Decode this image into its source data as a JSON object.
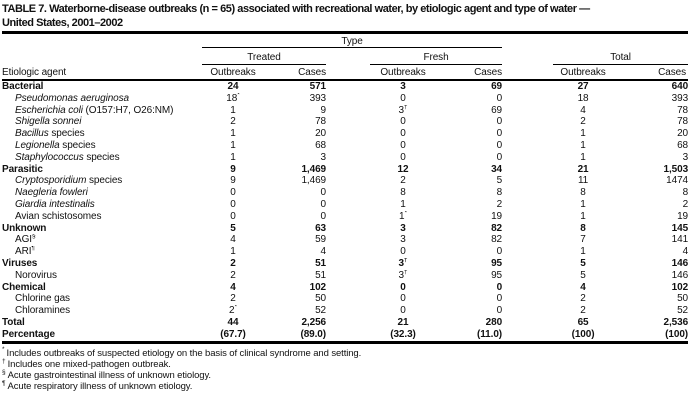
{
  "title": {
    "line1": "TABLE 7. Waterborne-disease outbreaks (n = 65) associated with recreational water, by etiologic agent and type of water —",
    "line2": "United States, 2001–2002"
  },
  "table": {
    "group_header": {
      "type": "Type",
      "treated": "Treated",
      "fresh": "Fresh",
      "total": "Total"
    },
    "col_headers": {
      "agent": "Etiologic agent",
      "outbreaks": "Outbreaks",
      "cases": "Cases"
    },
    "rows": [
      {
        "kind": "category",
        "label": "Bacterial",
        "cells": [
          "24",
          "571",
          "3",
          "69",
          "27",
          "640"
        ]
      },
      {
        "kind": "species",
        "label_i": "Pseudomonas aeruginosa",
        "cells": [
          "18^*",
          "393",
          "0",
          "0",
          "18",
          "393"
        ]
      },
      {
        "kind": "species",
        "label_i": "Escherichia coli",
        "label_r": " (O157:H7, O26:NM)",
        "cells": [
          "1",
          "9",
          "3^†",
          "69",
          "4",
          "78"
        ]
      },
      {
        "kind": "species",
        "label_i": "Shigella sonnei",
        "cells": [
          "2",
          "78",
          "0",
          "0",
          "2",
          "78"
        ]
      },
      {
        "kind": "species",
        "label_i": "Bacillus",
        "label_r": " species",
        "cells": [
          "1",
          "20",
          "0",
          "0",
          "1",
          "20"
        ]
      },
      {
        "kind": "species",
        "label_i": "Legionella",
        "label_r": " species",
        "cells": [
          "1",
          "68",
          "0",
          "0",
          "1",
          "68"
        ]
      },
      {
        "kind": "species",
        "label_i": "Staphylococcus",
        "label_r": " species",
        "cells": [
          "1",
          "3",
          "0",
          "0",
          "1",
          "3"
        ]
      },
      {
        "kind": "category",
        "label": "Parasitic",
        "cells": [
          "9",
          "1,469",
          "12",
          "34",
          "21",
          "1,503"
        ]
      },
      {
        "kind": "species",
        "label_i": "Cryptosporidium",
        "label_r": " species",
        "cells": [
          "9",
          "1,469",
          "2",
          "5",
          "11",
          "1474"
        ]
      },
      {
        "kind": "species",
        "label_i": "Naegleria fowleri",
        "cells": [
          "0",
          "0",
          "8",
          "8",
          "8",
          "8"
        ]
      },
      {
        "kind": "species",
        "label_i": "Giardia intestinalis",
        "cells": [
          "0",
          "0",
          "1",
          "2",
          "1",
          "2"
        ]
      },
      {
        "kind": "sub",
        "label_r": "Avian schistosomes",
        "cells": [
          "0",
          "0",
          "1^*",
          "19",
          "1",
          "19"
        ]
      },
      {
        "kind": "category",
        "label": "Unknown",
        "cells": [
          "5",
          "63",
          "3",
          "82",
          "8",
          "145"
        ]
      },
      {
        "kind": "sub",
        "label_r": "AGI^§",
        "cells": [
          "4",
          "59",
          "3",
          "82",
          "7",
          "141"
        ]
      },
      {
        "kind": "sub",
        "label_r": "ARI^¶",
        "cells": [
          "1",
          "4",
          "0",
          "0",
          "1",
          "4"
        ]
      },
      {
        "kind": "category",
        "label": "Viruses",
        "cells": [
          "2",
          "51",
          "3^†",
          "95",
          "5",
          "146"
        ]
      },
      {
        "kind": "sub",
        "label_r": "Norovirus",
        "cells": [
          "2",
          "51",
          "3^†",
          "95",
          "5",
          "146"
        ]
      },
      {
        "kind": "category",
        "label": "Chemical",
        "cells": [
          "4",
          "102",
          "0",
          "0",
          "4",
          "102"
        ]
      },
      {
        "kind": "sub",
        "label_r": "Chlorine gas",
        "cells": [
          "2",
          "50",
          "0",
          "0",
          "2",
          "50"
        ]
      },
      {
        "kind": "sub",
        "label_r": "Chloramines",
        "cells": [
          "2^*",
          "52",
          "0",
          "0",
          "2",
          "52"
        ]
      },
      {
        "kind": "total",
        "label": "Total",
        "cells": [
          "44",
          "2,256",
          "21",
          "280",
          "65",
          "2,536"
        ]
      },
      {
        "kind": "total",
        "label": "Percentage",
        "cells": [
          "(67.7)",
          "(89.0)",
          "(32.3)",
          "(11.0)",
          "(100)",
          "(100)"
        ]
      }
    ]
  },
  "footnotes": [
    {
      "marker": "*",
      "text": "Includes outbreaks of suspected etiology on the basis of clinical syndrome and setting."
    },
    {
      "marker": "†",
      "text": "Includes one mixed-pathogen outbreak."
    },
    {
      "marker": "§",
      "text": "Acute gastrointestinal illness of unknown etiology."
    },
    {
      "marker": "¶",
      "text": "Acute respiratory illness of unknown etiology."
    }
  ]
}
